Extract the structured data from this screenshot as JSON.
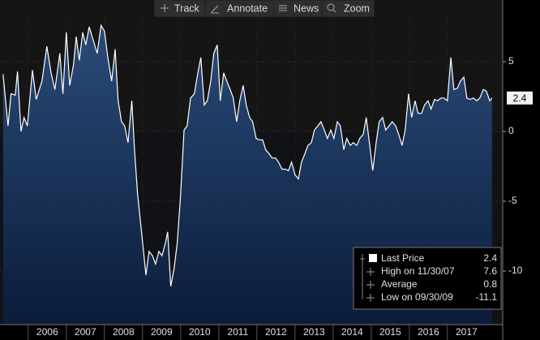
{
  "toolbar": [
    "Track",
    "Annotate",
    "News",
    "Zoom"
  ],
  "chart_data": {
    "type": "area",
    "xlim": [
      2005.26,
      2018.45
    ],
    "xticks": [
      2006,
      2007,
      2008,
      2009,
      2010,
      2011,
      2012,
      2013,
      2014,
      2015,
      2016,
      2017
    ],
    "ylim": [
      -13.84,
      8.26
    ],
    "yticks": [
      5,
      0,
      -5,
      -10
    ],
    "grid": true,
    "x": [
      2005.34,
      2005.47,
      2005.55,
      2005.66,
      2005.72,
      2005.81,
      2005.89,
      2005.98,
      2006.11,
      2006.21,
      2006.36,
      2006.49,
      2006.6,
      2006.7,
      2006.83,
      2006.91,
      2007.0,
      2007.09,
      2007.19,
      2007.26,
      2007.34,
      2007.43,
      2007.51,
      2007.6,
      2007.7,
      2007.81,
      2007.91,
      2008.0,
      2008.09,
      2008.19,
      2008.28,
      2008.36,
      2008.45,
      2008.53,
      2008.62,
      2008.72,
      2008.79,
      2008.87,
      2008.98,
      2009.09,
      2009.17,
      2009.26,
      2009.34,
      2009.43,
      2009.51,
      2009.6,
      2009.66,
      2009.74,
      2009.83,
      2009.91,
      2010.0,
      2010.09,
      2010.17,
      2010.26,
      2010.36,
      2010.45,
      2010.53,
      2010.62,
      2010.7,
      2010.79,
      2010.87,
      2010.96,
      2011.04,
      2011.13,
      2011.21,
      2011.3,
      2011.38,
      2011.47,
      2011.55,
      2011.64,
      2011.72,
      2011.81,
      2011.89,
      2011.98,
      2012.06,
      2012.15,
      2012.23,
      2012.32,
      2012.4,
      2012.49,
      2012.57,
      2012.66,
      2012.74,
      2012.83,
      2012.91,
      2013.0,
      2013.09,
      2013.17,
      2013.26,
      2013.34,
      2013.43,
      2013.51,
      2013.6,
      2013.68,
      2013.77,
      2013.85,
      2013.94,
      2014.02,
      2014.11,
      2014.19,
      2014.28,
      2014.36,
      2014.45,
      2014.53,
      2014.62,
      2014.7,
      2014.79,
      2014.87,
      2014.96,
      2015.04,
      2015.13,
      2015.21,
      2015.3,
      2015.38,
      2015.47,
      2015.55,
      2015.64,
      2015.72,
      2015.81,
      2015.89,
      2015.98,
      2016.06,
      2016.15,
      2016.23,
      2016.32,
      2016.4,
      2016.49,
      2016.57,
      2016.66,
      2016.74,
      2016.83,
      2016.91,
      2017.0,
      2017.09,
      2017.17,
      2017.26,
      2017.34,
      2017.43,
      2017.51,
      2017.6,
      2017.68,
      2017.77,
      2017.85,
      2017.94,
      2018.02,
      2018.11,
      2018.17
    ],
    "series": [
      {
        "name": "Last Price",
        "color": "#ffffff",
        "fill": "#1f3d66",
        "values": [
          4.1,
          0.4,
          2.7,
          2.6,
          4.3,
          0,
          1.0,
          0.4,
          4.4,
          2.3,
          3.6,
          6.1,
          4.2,
          3.0,
          5.6,
          2.7,
          7.1,
          3.3,
          4.8,
          6.8,
          5.1,
          7.1,
          6.2,
          7.5,
          6.6,
          5.6,
          7.6,
          7.2,
          5.3,
          3.6,
          5.9,
          2.2,
          0.7,
          0.4,
          -0.8,
          2.2,
          -1.3,
          -4.5,
          -7.4,
          -10.3,
          -8.6,
          -8.9,
          -9.5,
          -8.6,
          -8.9,
          -8.0,
          -7.2,
          -11.1,
          -9.8,
          -8.0,
          -4.5,
          0.1,
          0.4,
          2.4,
          2.7,
          4.2,
          5.3,
          1.9,
          2.2,
          3.6,
          5.6,
          6.2,
          2.2,
          4.2,
          3.6,
          3.0,
          2.4,
          0.7,
          2.2,
          3.3,
          1.9,
          1.0,
          0.7,
          -0.5,
          -0.6,
          -0.6,
          -1.3,
          -1.6,
          -1.9,
          -1.9,
          -2.2,
          -2.7,
          -2.7,
          -2.8,
          -2.2,
          -3.1,
          -3.4,
          -2.2,
          -1.6,
          -1.0,
          -0.8,
          0.1,
          0.4,
          0.7,
          0.1,
          -0.5,
          0.1,
          -0.5,
          0.7,
          0.4,
          -1.3,
          -0.5,
          -1.0,
          -0.8,
          -1.0,
          -0.5,
          -0.2,
          1.0,
          -1.0,
          -2.8,
          -0.8,
          0.7,
          1.0,
          0.1,
          0.4,
          0.7,
          0.4,
          -0.2,
          -1.0,
          0.1,
          2.7,
          1.0,
          2.2,
          1.3,
          1.3,
          1.9,
          2.2,
          1.6,
          2.3,
          2.2,
          2.4,
          2.4,
          2.2,
          5.3,
          3.0,
          3.1,
          3.6,
          3.9,
          2.4,
          2.3,
          2.4,
          2.2,
          2.4,
          3.0,
          2.9,
          2.2,
          2.4
        ]
      }
    ],
    "stats": [
      {
        "label": "High on 11/30/07",
        "value": 7.6
      },
      {
        "label": "Average",
        "value": 0.8
      },
      {
        "label": "Low on 09/30/09",
        "value": -11.1
      }
    ]
  }
}
